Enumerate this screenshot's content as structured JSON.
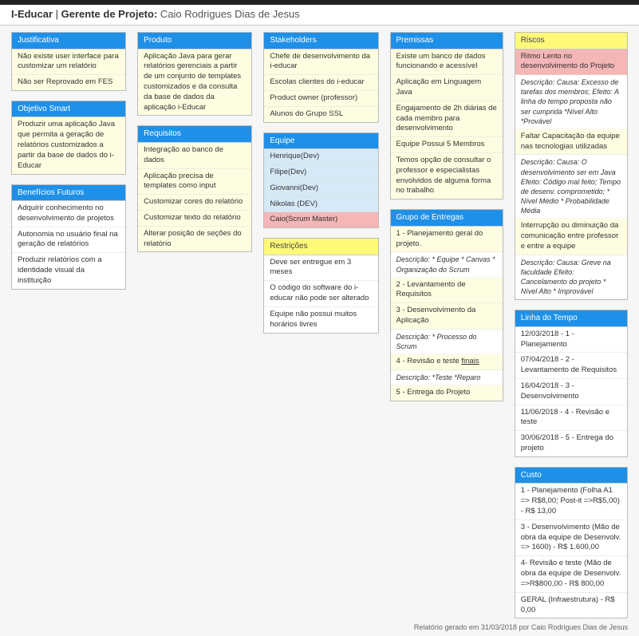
{
  "header": {
    "brand": "I-Educar",
    "role_label": "Gerente de Projeto:",
    "manager": "Caio Rodrigues Dias de Jesus"
  },
  "colors": {
    "header_blue": "#1e90e8",
    "header_yellow": "#fff97a",
    "row_yellow": "#fffde1",
    "row_blue": "#d6e9f6",
    "row_red": "#f4b6b6",
    "background": "#f6f6f6",
    "topbar_border": "#222222"
  },
  "justificativa": {
    "title": "Justificativa",
    "items": [
      "Não existe user interface para customizar um relatório",
      "Não ser Reprovado em FES"
    ]
  },
  "objetivo_smart": {
    "title": "Objetivo Smart",
    "items": [
      "Produzir uma aplicação Java que permita a geração de relatórios customizados a partir da base de dados do i-Educar"
    ]
  },
  "beneficios": {
    "title": "Benefícios Futuros",
    "items": [
      "Adquirir conhecimento no desenvolvimento de projetos",
      "Autonomia no usuário final na geração de relatórios",
      "Produzir relatórios com a identidade visual da instituição"
    ]
  },
  "produto": {
    "title": "Produto",
    "items": [
      "Aplicação Java para gerar relatórios gerenciais a partir de um conjunto de templates customizados e da consulta da base de dados da aplicação i-Educar"
    ]
  },
  "requisitos": {
    "title": "Requisitos",
    "items": [
      "Integração ao banco de dados",
      "Aplicação precisa de templates como input",
      "Customizar cores do relatório",
      "Customizar texto do relatório",
      "Alterar posição de seções do relatório"
    ]
  },
  "stakeholders": {
    "title": "Stakeholders",
    "items": [
      "Chefe de desenvolvimento da i-educar",
      "Escolas clientes do i-educar",
      "Product owner (professor)",
      "Alunos do Grupo SSL"
    ]
  },
  "equipe": {
    "title": "Equipe",
    "items": [
      {
        "label": "Henrique(Dev)",
        "type": "blue"
      },
      {
        "label": "Filipe(Dev)",
        "type": "blue"
      },
      {
        "label": "Giovanni(Dev)",
        "type": "blue"
      },
      {
        "label": "Nikolas (DEV)",
        "type": "blue"
      },
      {
        "label": "Caio(Scrum Master)",
        "type": "red"
      }
    ]
  },
  "premissas": {
    "title": "Premissas",
    "items": [
      "Existe um banco de dados funcionando e acessível",
      "Aplicação em Linguagem Java",
      "Engajamento de 2h diárias de cada membro para desenvolvimento",
      "Equipe Possui 5 Membros",
      "Temos opção de consultar o professor e especialistas envolvidos de alguma forma no trabalho"
    ]
  },
  "grupo_entregas": {
    "title": "Grupo de Entregas",
    "items": [
      {
        "title": "1 - Planejamento geral do projeto.",
        "desc": "Descrição: * Equipe * Canvas * Organização do Scrum"
      },
      {
        "title": "2 - Levantamento de Requisitos",
        "desc": ""
      },
      {
        "title": "3 - Desenvolvimento da Aplicação",
        "desc": "Descrição: * Processo do Scrum"
      },
      {
        "title": "4 - Revisão e teste finais",
        "desc": "Descrição: *Teste *Reparo"
      },
      {
        "title": "5 - Entrega do Projeto",
        "desc": ""
      }
    ]
  },
  "riscos": {
    "title": "Riscos",
    "items": [
      {
        "title": "Ritmo Lento no desenvolvimento do Projeto",
        "desc": "Descrição: Causa: Excesso de tarefas dos membros; Efeito: A linha do tempo proposta não ser cumprida *Nível Alto *Provável",
        "type": "red"
      },
      {
        "title": "Faltar Capacitação da equipe nas tecnologias utilizadas",
        "desc": "Descrição: Causa: O desenvolvimento ser em Java Efeito: Código mal feito; Tempo de desenv. comprometido; * Nível Médio * Probabilidade Média",
        "type": "yellow"
      },
      {
        "title": "Interrupção ou diminuição da comunicação entre professor e entre a equipe",
        "desc": "Descrição: Causa: Greve na faculdade Efeito: Cancelamento do projeto * Nível Alto * Improvável",
        "type": "yellow"
      }
    ]
  },
  "linha_tempo": {
    "title": "Linha do Tempo",
    "items": [
      "12/03/2018 - 1 - Planejamento",
      "07/04/2018 - 2 - Levantamento de Requisitos",
      "16/04/2018 - 3 - Desenvolvimento",
      "11/06/2018 - 4 - Revisão e teste",
      "30/06/2018 - 5 - Entrega do projeto"
    ]
  },
  "custo": {
    "title": "Custo",
    "items": [
      "1 - Planejamento (Folha A1 => R$8,00; Post-it =>R$5,00) - R$ 13,00",
      "3 - Desenvolvimento (Mão de obra da equipe de Desenvolv. => 1600) - R$ 1.600,00",
      "4- Revisão e teste (Mão de obra da equipe de Desenvolv. =>R$800,00 - R$ 800,00",
      "GERAL (Infraestrutura) - R$ 0,00"
    ]
  },
  "restricoes": {
    "title": "Restrições",
    "items": [
      "Deve ser entregue em 3 meses",
      "O código do software do i-educar não pode ser alterado",
      "Equipe não possui muitos horários livres"
    ]
  },
  "footer": {
    "text": "Relatório gerado em 31/03/2018 por Caio Rodrigues Dias de Jesus"
  }
}
